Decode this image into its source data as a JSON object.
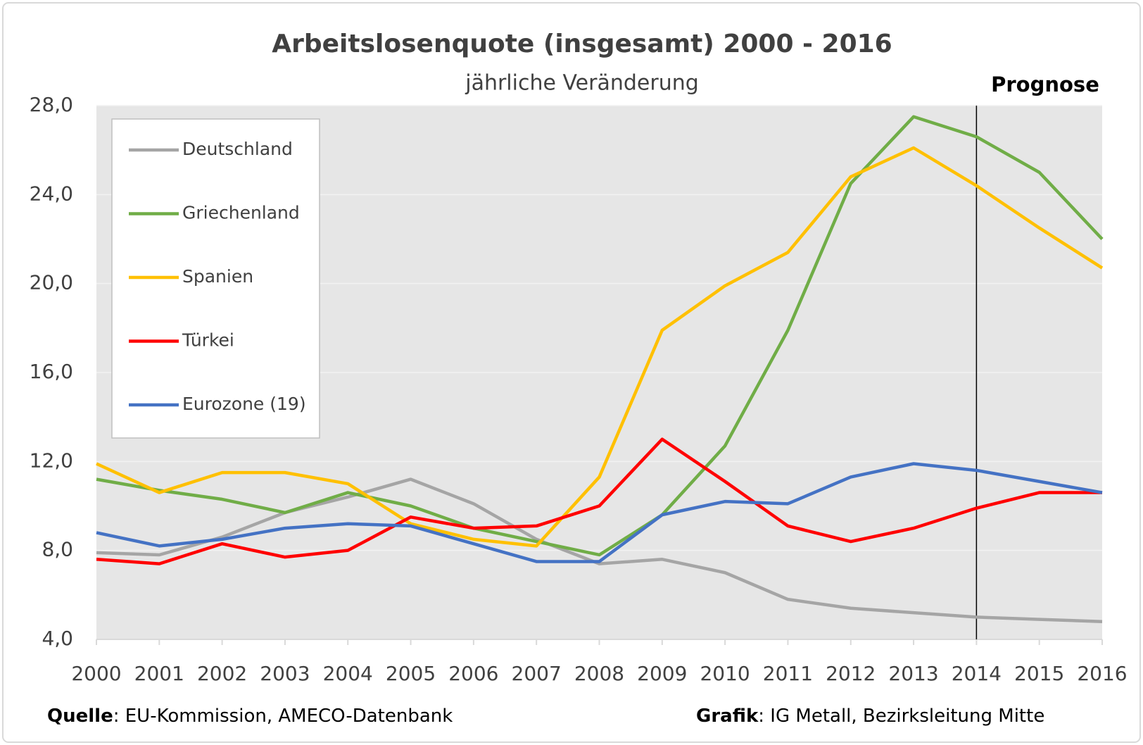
{
  "chart_data": {
    "type": "line",
    "title": "Arbeitslosenquote (insgesamt) 2000 - 2016",
    "subtitle": "jährliche Veränderung",
    "annotation": {
      "text": "Prognose",
      "x": "2014"
    },
    "categories": [
      "2000",
      "2001",
      "2002",
      "2003",
      "2004",
      "2005",
      "2006",
      "2007",
      "2008",
      "2009",
      "2010",
      "2011",
      "2012",
      "2013",
      "2014",
      "2015",
      "2016"
    ],
    "series": [
      {
        "name": "Deutschland",
        "color": "#a5a5a5",
        "values": [
          7.9,
          7.8,
          8.6,
          9.7,
          10.4,
          11.2,
          10.1,
          8.5,
          7.4,
          7.6,
          7.0,
          5.8,
          5.4,
          5.2,
          5.0,
          4.9,
          4.8
        ]
      },
      {
        "name": "Griechenland",
        "color": "#70ad47",
        "values": [
          11.2,
          10.7,
          10.3,
          9.7,
          10.6,
          10.0,
          9.0,
          8.4,
          7.8,
          9.6,
          12.7,
          17.9,
          24.5,
          27.5,
          26.6,
          25.0,
          22.0
        ]
      },
      {
        "name": "Spanien",
        "color": "#ffc000",
        "values": [
          11.9,
          10.6,
          11.5,
          11.5,
          11.0,
          9.2,
          8.5,
          8.2,
          11.3,
          17.9,
          19.9,
          21.4,
          24.8,
          26.1,
          24.4,
          22.5,
          20.7
        ]
      },
      {
        "name": "Türkei",
        "color": "#ff0000",
        "values": [
          7.6,
          7.4,
          8.3,
          7.7,
          8.0,
          9.5,
          9.0,
          9.1,
          10.0,
          13.0,
          11.1,
          9.1,
          8.4,
          9.0,
          9.9,
          10.6,
          10.6
        ]
      },
      {
        "name": "Eurozone (19)",
        "color": "#4472c4",
        "values": [
          8.8,
          8.2,
          8.5,
          9.0,
          9.2,
          9.1,
          8.3,
          7.5,
          7.5,
          9.6,
          10.2,
          10.1,
          11.3,
          11.9,
          11.6,
          11.1,
          10.6
        ]
      }
    ],
    "ylim": [
      4,
      28
    ],
    "yticks": [
      {
        "value": 4,
        "label": "4,0"
      },
      {
        "value": 8,
        "label": "8,0"
      },
      {
        "value": 12,
        "label": "12,0"
      },
      {
        "value": 16,
        "label": "16,0"
      },
      {
        "value": 20,
        "label": "20,0"
      },
      {
        "value": 24,
        "label": "24,0"
      },
      {
        "value": 28,
        "label": "28,0"
      }
    ],
    "grid": true,
    "legend": "upper left",
    "source": {
      "label": "Quelle",
      "text": ": EU-Kommission, AMECO-Datenbank"
    },
    "credit": {
      "label": "Grafik",
      "text": ": IG Metall, Bezirksleitung Mitte"
    }
  }
}
